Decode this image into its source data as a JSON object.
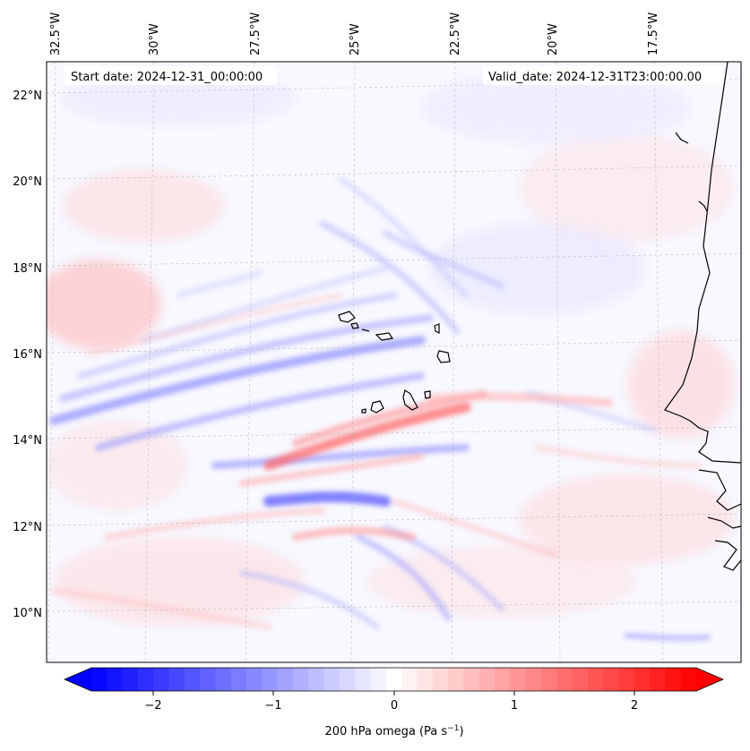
{
  "header": {
    "start_date": "Start date: 2024-12-31_00:00:00",
    "valid_date": "Valid_date: 2024-12-31T23:00:00.00"
  },
  "map": {
    "lon_labels": [
      "32.5°W",
      "30°W",
      "27.5°W",
      "25°W",
      "22.5°W",
      "20°W",
      "17.5°W"
    ],
    "lat_labels": [
      "22°N",
      "20°N",
      "18°N",
      "16°N",
      "14°N",
      "12°N",
      "10°N"
    ],
    "field": "200 hPa omega",
    "units": "Pa s",
    "units_exponent": "−1",
    "coastline_color": "#000000"
  },
  "colorbar": {
    "ticks": [
      "−2",
      "−1",
      "0",
      "1",
      "2"
    ],
    "label": "200 hPa omega (Pa s",
    "label_exponent": "−1",
    "label_close": ")",
    "cmap": "bwr",
    "vmin": -2.6,
    "vmax": 2.6,
    "extend": "both",
    "colors": {
      "negative": "#0000ff",
      "zero": "#ffffff",
      "positive": "#ff0000"
    }
  }
}
